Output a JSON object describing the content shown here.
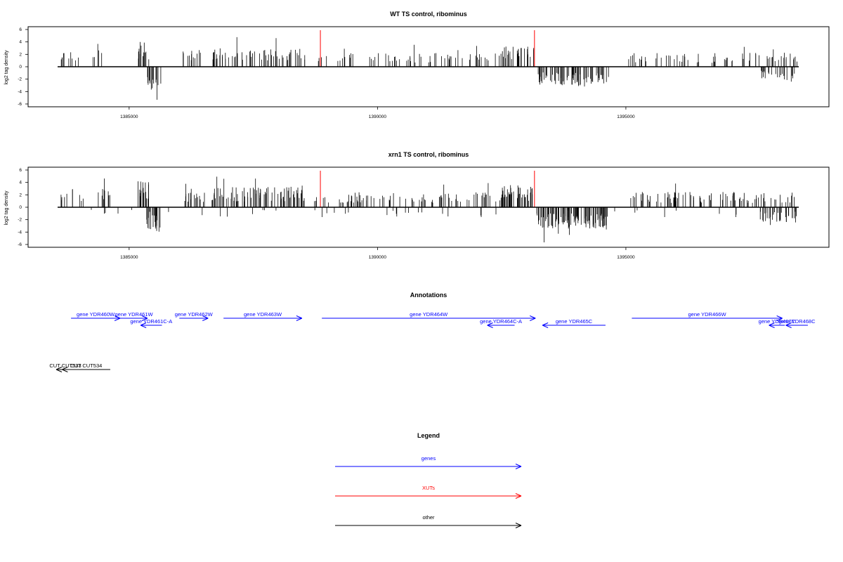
{
  "colors": {
    "gene": "#0000ff",
    "xut": "#ff0000",
    "other": "#000000",
    "bar": "#000000"
  },
  "chart_data": [
    {
      "type": "bar",
      "title": "WT TS control, ribominus",
      "ylabel": "log2 tag density",
      "ylim": [
        -6,
        6
      ],
      "yticks": [
        "6",
        "4",
        "2",
        "0",
        "-2",
        "-4",
        "-6"
      ],
      "xlim": [
        1383300,
        1398700
      ],
      "xticks": [
        "1385000",
        "1390000",
        "1395000"
      ],
      "baseline": [
        1383560,
        1398480
      ],
      "highlight_positions": [
        1388850,
        1393160
      ],
      "seed": 11
    },
    {
      "type": "bar",
      "title": "xrn1 TS control, ribominus",
      "ylabel": "log2 tag density",
      "ylim": [
        -6,
        6
      ],
      "yticks": [
        "6",
        "4",
        "2",
        "0",
        "-2",
        "-4",
        "-6"
      ],
      "xlim": [
        1383300,
        1398700
      ],
      "xticks": [
        "1385000",
        "1390000",
        "1395000"
      ],
      "baseline": [
        1383560,
        1398480
      ],
      "highlight_positions": [
        1388850,
        1393160
      ],
      "seed": 29
    }
  ],
  "annotations": {
    "title": "Annotations",
    "genes": [
      {
        "label": "gene YDR460W",
        "start": 1383830,
        "end": 1384820,
        "strand": "+",
        "row": 1
      },
      {
        "label": "gene YDR461W",
        "start": 1384820,
        "end": 1385370,
        "strand": "+",
        "row": 1
      },
      {
        "label": "gene YDR461C-A",
        "start": 1385230,
        "end": 1385660,
        "strand": "-",
        "row": 2
      },
      {
        "label": "gene YDR462W",
        "start": 1386010,
        "end": 1386590,
        "strand": "+",
        "row": 1
      },
      {
        "label": "gene YDR463W",
        "start": 1386900,
        "end": 1388480,
        "strand": "+",
        "row": 1
      },
      {
        "label": "gene YDR464W",
        "start": 1388880,
        "end": 1393180,
        "strand": "+",
        "row": 1
      },
      {
        "label": "gene YDR464C-A",
        "start": 1392210,
        "end": 1392760,
        "strand": "-",
        "row": 2
      },
      {
        "label": "gene YDR465C",
        "start": 1393320,
        "end": 1394590,
        "strand": "-",
        "row": 2
      },
      {
        "label": "gene YDR466W",
        "start": 1395120,
        "end": 1398150,
        "strand": "+",
        "row": 1
      },
      {
        "label": "gene YDR467C",
        "start": 1397880,
        "end": 1398200,
        "strand": "-",
        "row": 2
      },
      {
        "label": "gene YDR468C",
        "start": 1398220,
        "end": 1398920,
        "strand": "-",
        "row": 2
      }
    ],
    "others": [
      {
        "label": "CUT CUT533",
        "start": 1383300,
        "end": 1383900,
        "strand": "-"
      },
      {
        "label": "CUT CUT534",
        "start": 1383650,
        "end": 1384620,
        "strand": "-"
      }
    ]
  },
  "legend": {
    "title": "Legend",
    "items": [
      {
        "label": "genes",
        "color": "#0000ff"
      },
      {
        "label": "XUTs",
        "color": "#ff0000"
      },
      {
        "label": "other",
        "color": "#000000"
      }
    ]
  }
}
